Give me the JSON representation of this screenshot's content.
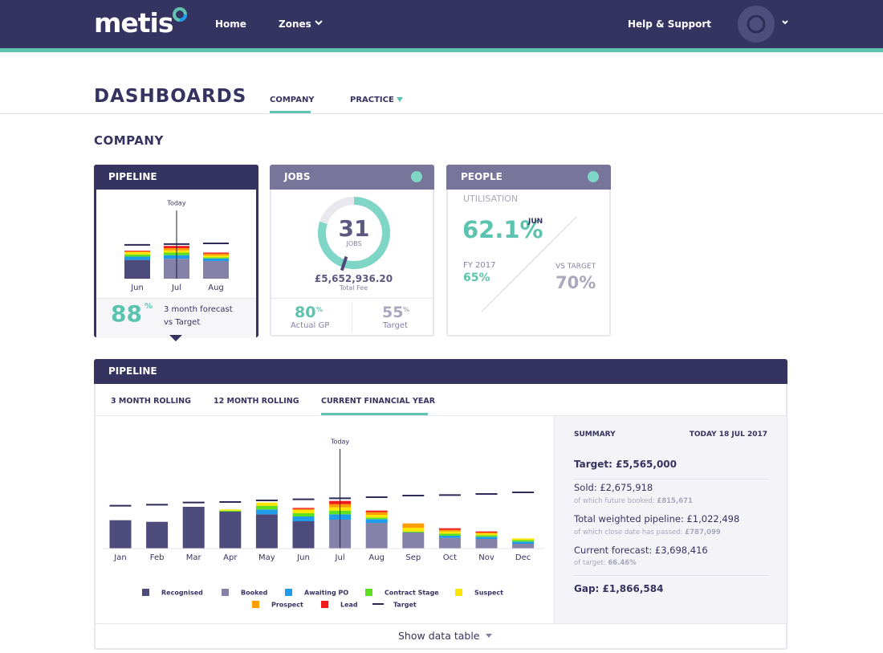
{
  "header": {
    "logo": "metis",
    "nav": [
      "Home",
      "Zones",
      "Help & Support"
    ]
  },
  "page": {
    "title": "DASHBOARDS",
    "tabs": [
      "COMPANY",
      "PRACTICE"
    ],
    "section": "COMPANY"
  },
  "cards": {
    "pipeline": {
      "title": "PIPELINE",
      "forecast": 88,
      "percent": "%",
      "caption": [
        "3 month forecast",
        "vs Target"
      ]
    },
    "jobs": {
      "title": "JOBS",
      "count": 31,
      "count_label": "JOBS",
      "fee": "£5,652,936.20",
      "fee_label": "Total Fee",
      "gp": 80,
      "gp_label": "Actual GP",
      "target": 55,
      "target_label": "Target",
      "percent": "%"
    },
    "people": {
      "title": "PEOPLE",
      "metric": "UTILISATION",
      "current": "62.1%",
      "current_month": "JUN",
      "fy_label": "FY 2017",
      "fy": "65%",
      "target_label": "VS TARGET",
      "target": "70%"
    }
  },
  "pipeline": {
    "title": "PIPELINE",
    "tabs": [
      "3 MONTH ROLLING",
      "12 MONTH ROLLING",
      "CURRENT FINANCIAL YEAR"
    ],
    "show_table": "Show data table"
  },
  "summary": {
    "title": "SUMMARY",
    "date": "TODAY 18 JUL 2017",
    "target": "Target: £5,565,000",
    "rows": [
      {
        "main": "Sold: £2,675,918",
        "note": "of which future booked: ",
        "note_value": "£815,671"
      },
      {
        "main": "Total weighted pipeline: £1,022,498",
        "note": "of which close date has passed: ",
        "note_value": "£787,099"
      },
      {
        "main": "Current forecast: £3,698,416",
        "note": "of target: ",
        "note_value": "66.46%"
      }
    ],
    "gap": "Gap: £1,866,584"
  },
  "chart_data": [
    {
      "type": "stacked_bar",
      "categories": [
        "Jan",
        "Feb",
        "Mar",
        "Apr",
        "May",
        "Jun",
        "Jul",
        "Aug",
        "Sep",
        "Oct",
        "Nov",
        "Dec"
      ],
      "series": [
        {
          "name": "Recognised",
          "color": "#4d4b7b",
          "values": [
            265,
            250,
            390,
            345,
            320,
            255,
            null,
            null,
            null,
            null,
            null,
            null
          ]
        },
        {
          "name": "Booked",
          "color": "#8482a8",
          "values": [
            null,
            null,
            null,
            null,
            null,
            null,
            270,
            240,
            150,
            100,
            90,
            45
          ]
        },
        {
          "name": "Awaiting PO",
          "color": "#1e9be9",
          "values": [
            null,
            null,
            null,
            null,
            45,
            45,
            50,
            35,
            null,
            20,
            20,
            20
          ]
        },
        {
          "name": "Contract Stage",
          "color": "#5fe01f",
          "values": [
            null,
            null,
            null,
            10,
            35,
            30,
            35,
            15,
            10,
            20,
            15,
            15
          ]
        },
        {
          "name": "Suspect",
          "color": "#ffe600",
          "values": [
            null,
            null,
            null,
            10,
            30,
            30,
            30,
            25,
            35,
            20,
            15,
            15
          ]
        },
        {
          "name": "Prospect",
          "color": "#ff9e00",
          "values": [
            null,
            null,
            null,
            null,
            null,
            10,
            30,
            25,
            40,
            15,
            10,
            null
          ]
        },
        {
          "name": "Lead",
          "color": "#ef1a1a",
          "values": [
            null,
            null,
            null,
            null,
            null,
            10,
            30,
            15,
            null,
            15,
            10,
            null
          ]
        }
      ],
      "target": {
        "name": "Target",
        "color": "#2b2955",
        "values": [
          400,
          410,
          430,
          435,
          450,
          460,
          470,
          480,
          495,
          500,
          510,
          525
        ]
      },
      "today": "Jul",
      "today_label": "Today"
    },
    {
      "type": "stacked_bar",
      "categories": [
        "Jun",
        "Jul",
        "Aug"
      ],
      "series": [
        {
          "color": "#4d4b7b",
          "values": [
            255,
            null,
            null
          ]
        },
        {
          "color": "#8482a8",
          "values": [
            null,
            270,
            240
          ]
        },
        {
          "color": "#1e9be9",
          "values": [
            45,
            50,
            35
          ]
        },
        {
          "color": "#5fe01f",
          "values": [
            30,
            35,
            15
          ]
        },
        {
          "color": "#ffe600",
          "values": [
            30,
            30,
            25
          ]
        },
        {
          "color": "#ff9e00",
          "values": [
            10,
            30,
            25
          ]
        },
        {
          "color": "#ef1a1a",
          "values": [
            10,
            30,
            15
          ]
        }
      ],
      "target": {
        "color": "#2b2955",
        "values": [
          460,
          470,
          480
        ]
      },
      "today": "Jul",
      "today_label": "Today"
    }
  ]
}
